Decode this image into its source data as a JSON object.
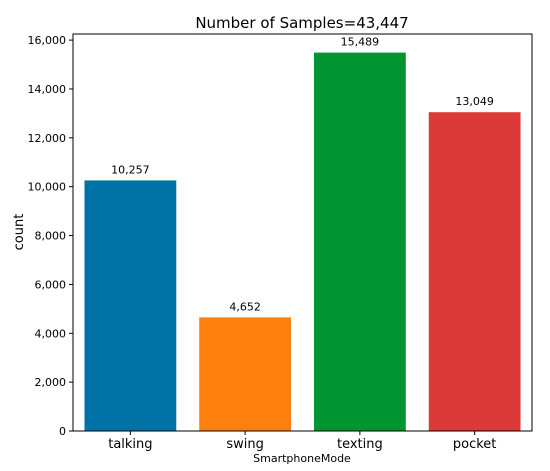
{
  "chart_data": {
    "type": "bar",
    "title": "Number of Samples=43,447",
    "xlabel": "SmartphoneMode",
    "ylabel": "count",
    "categories": [
      "talking",
      "swing",
      "texting",
      "pocket"
    ],
    "values": [
      10257,
      4652,
      15489,
      13049
    ],
    "data_labels": [
      "10,257",
      "4,652",
      "15,489",
      "13,049"
    ],
    "colors": [
      "#0072a5",
      "#ff7f0e",
      "#009530",
      "#dc3939"
    ],
    "ylim": [
      0,
      16250
    ],
    "yticks": [
      0,
      2000,
      4000,
      6000,
      8000,
      10000,
      12000,
      14000,
      16000
    ],
    "ytick_labels": [
      "0",
      "2,000",
      "4,000",
      "6,000",
      "8,000",
      "10,000",
      "12,000",
      "14,000",
      "16,000"
    ],
    "grid": false,
    "legend": "none"
  }
}
